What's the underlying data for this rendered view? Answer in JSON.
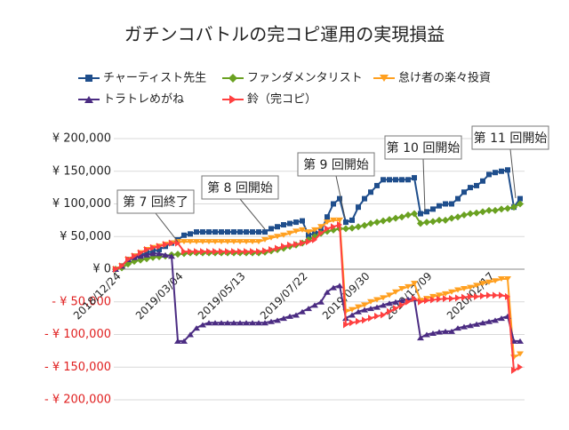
{
  "chart_data": {
    "type": "line",
    "title": "ガチンコバトルの完コピ運用の実現損益",
    "categories": [
      "2018/12/24",
      null,
      null,
      null,
      null,
      null,
      null,
      null,
      null,
      null,
      "2019/03/04",
      null,
      null,
      null,
      null,
      null,
      null,
      null,
      null,
      null,
      "2019/05/13",
      null,
      null,
      null,
      null,
      null,
      null,
      null,
      null,
      null,
      "2019/07/22",
      null,
      null,
      null,
      null,
      null,
      null,
      null,
      null,
      null,
      "2019/09/30",
      null,
      null,
      null,
      null,
      null,
      null,
      null,
      null,
      null,
      "2019/12/09",
      null,
      null,
      null,
      null,
      null,
      null,
      null,
      null,
      null,
      "2020/02/17",
      null,
      null,
      null,
      null,
      null
    ],
    "series": [
      {
        "name": "チャーティスト先生",
        "color": "#1f4e8c",
        "marker": "square",
        "values": [
          0,
          5000,
          15000,
          20000,
          22000,
          25000,
          28000,
          30000,
          35000,
          40000,
          45000,
          52000,
          54000,
          57000,
          57000,
          57000,
          57000,
          57000,
          57000,
          57000,
          57000,
          57000,
          57000,
          57000,
          57000,
          62000,
          65000,
          68000,
          70000,
          72000,
          74000,
          52000,
          55000,
          58000,
          80000,
          100000,
          108000,
          72000,
          75000,
          95000,
          108000,
          118000,
          128000,
          137000,
          137000,
          137000,
          137000,
          137000,
          140000,
          85000,
          88000,
          92000,
          97000,
          100000,
          100000,
          108000,
          118000,
          125000,
          128000,
          135000,
          145000,
          148000,
          150000,
          152000,
          95000,
          108000
        ]
      },
      {
        "name": "ファンダメンタリスト",
        "color": "#6aa121",
        "marker": "diamond",
        "values": [
          0,
          2000,
          8000,
          12000,
          14000,
          16000,
          18000,
          19000,
          20000,
          22000,
          23000,
          24000,
          25000,
          25000,
          25000,
          25000,
          25000,
          25000,
          25000,
          25000,
          25000,
          25000,
          25000,
          25000,
          26000,
          28000,
          30000,
          32000,
          35000,
          37000,
          40000,
          45000,
          50000,
          55000,
          58000,
          60000,
          62000,
          62000,
          63000,
          65000,
          67000,
          70000,
          72000,
          74000,
          76000,
          78000,
          80000,
          83000,
          85000,
          70000,
          72000,
          73000,
          75000,
          75000,
          78000,
          80000,
          83000,
          85000,
          86000,
          88000,
          90000,
          90000,
          92000,
          93000,
          95000,
          100000
        ]
      },
      {
        "name": "怠け者の楽々投資",
        "color": "#ffa020",
        "marker": "down",
        "values": [
          0,
          5000,
          15000,
          20000,
          25000,
          30000,
          33000,
          35000,
          38000,
          40000,
          42000,
          42000,
          42000,
          42000,
          42000,
          42000,
          42000,
          42000,
          42000,
          42000,
          42000,
          42000,
          42000,
          42000,
          45000,
          48000,
          50000,
          52000,
          55000,
          58000,
          60000,
          57000,
          60000,
          65000,
          72000,
          75000,
          75000,
          -65000,
          -62000,
          -58000,
          -55000,
          -50000,
          -47000,
          -44000,
          -40000,
          -35000,
          -30000,
          -27000,
          -22000,
          -48000,
          -45000,
          -42000,
          -40000,
          -38000,
          -35000,
          -32000,
          -30000,
          -28000,
          -25000,
          -22000,
          -20000,
          -18000,
          -15000,
          -15000,
          -135000,
          -130000
        ]
      },
      {
        "name": "トラトレめがね",
        "color": "#4b2c82",
        "marker": "up",
        "values": [
          0,
          5000,
          15000,
          18000,
          20000,
          22000,
          24000,
          24000,
          22000,
          20000,
          -110000,
          -110000,
          -100000,
          -90000,
          -85000,
          -82000,
          -82000,
          -82000,
          -82000,
          -82000,
          -82000,
          -82000,
          -82000,
          -82000,
          -82000,
          -80000,
          -78000,
          -75000,
          -72000,
          -70000,
          -65000,
          -60000,
          -55000,
          -50000,
          -35000,
          -28000,
          -25000,
          -75000,
          -70000,
          -65000,
          -62000,
          -60000,
          -58000,
          -55000,
          -52000,
          -50000,
          -48000,
          -46000,
          -45000,
          -105000,
          -100000,
          -98000,
          -96000,
          -95000,
          -95000,
          -90000,
          -88000,
          -86000,
          -84000,
          -82000,
          -80000,
          -78000,
          -75000,
          -72000,
          -110000,
          -110000
        ]
      },
      {
        "name": "鈴（完コピ）",
        "color": "#ff4040",
        "marker": "right",
        "values": [
          0,
          5000,
          15000,
          20000,
          25000,
          30000,
          33000,
          35000,
          38000,
          40000,
          40000,
          27000,
          27000,
          27000,
          27000,
          27000,
          27000,
          27000,
          27000,
          27000,
          27000,
          27000,
          27000,
          27000,
          28000,
          30000,
          32000,
          35000,
          37000,
          38000,
          40000,
          42000,
          45000,
          55000,
          62000,
          65000,
          68000,
          -85000,
          -82000,
          -80000,
          -78000,
          -75000,
          -72000,
          -70000,
          -65000,
          -60000,
          -55000,
          -50000,
          -45000,
          -50000,
          -48000,
          -47000,
          -46000,
          -45000,
          -45000,
          -44000,
          -43000,
          -42000,
          -42000,
          -41000,
          -40000,
          -40000,
          -40000,
          -42000,
          -155000,
          -150000
        ]
      }
    ],
    "ylim": [
      -200000,
      200000
    ],
    "yticks": [
      {
        "value": -200000,
        "label": "- ¥ 200,000"
      },
      {
        "value": -150000,
        "label": "- ¥ 150,000"
      },
      {
        "value": -100000,
        "label": "- ¥ 100,000"
      },
      {
        "value": -50000,
        "label": "- ¥ 50,000"
      },
      {
        "value": 0,
        "label": "¥ 0"
      },
      {
        "value": 50000,
        "label": "¥ 50,000"
      },
      {
        "value": 100000,
        "label": "¥ 100,000"
      },
      {
        "value": 150000,
        "label": "¥ 150,000"
      },
      {
        "value": 200000,
        "label": "¥ 200,000"
      }
    ],
    "negative_tick_color": "#e02020",
    "grid": true,
    "legend": "top",
    "annotations": [
      "第 7 回終了",
      "第 8 回開始",
      "第 9 回開始",
      "第 10 回開始",
      "第 11 回開始"
    ]
  }
}
